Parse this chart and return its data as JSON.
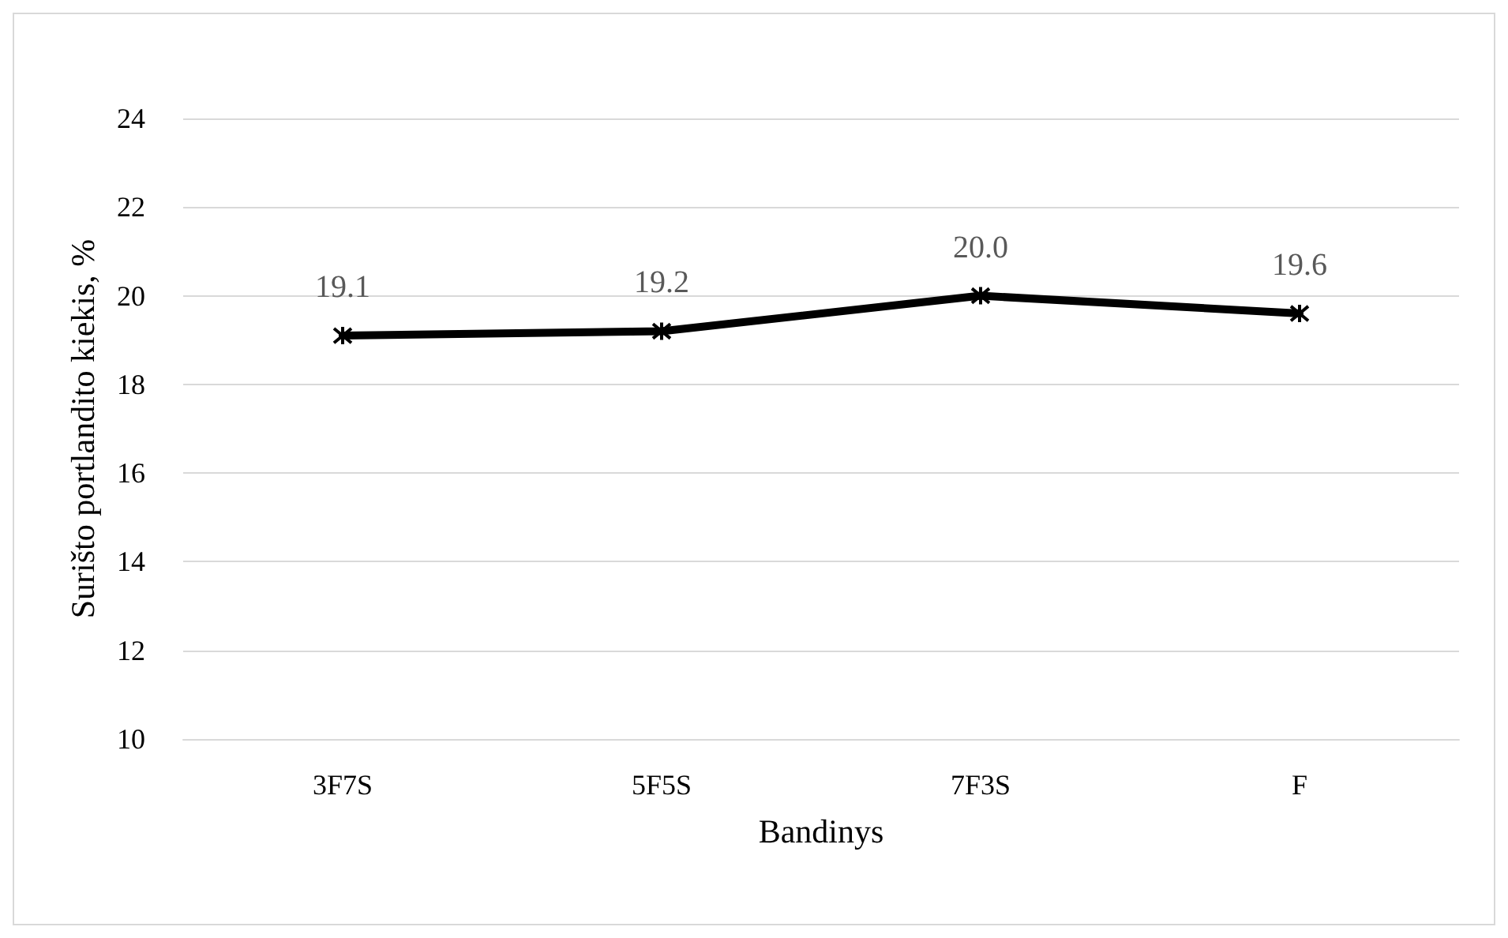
{
  "chart_data": {
    "type": "line",
    "xlabel": "Bandinys",
    "ylabel": "Surišto portlandito kiekis, %",
    "categories": [
      "3F7S",
      "5F5S",
      "7F3S",
      "F"
    ],
    "series": [
      {
        "color": "#000000",
        "values": [
          19.1,
          19.2,
          20.0,
          19.6
        ],
        "value_labels": [
          "19.1",
          "19.2",
          "20.0",
          "19.6"
        ]
      }
    ],
    "ylim": [
      10,
      24
    ],
    "yticks": [
      10,
      12,
      14,
      16,
      18,
      20,
      22,
      24
    ],
    "grid": "y",
    "marker": "cross",
    "line_style": "solid"
  }
}
